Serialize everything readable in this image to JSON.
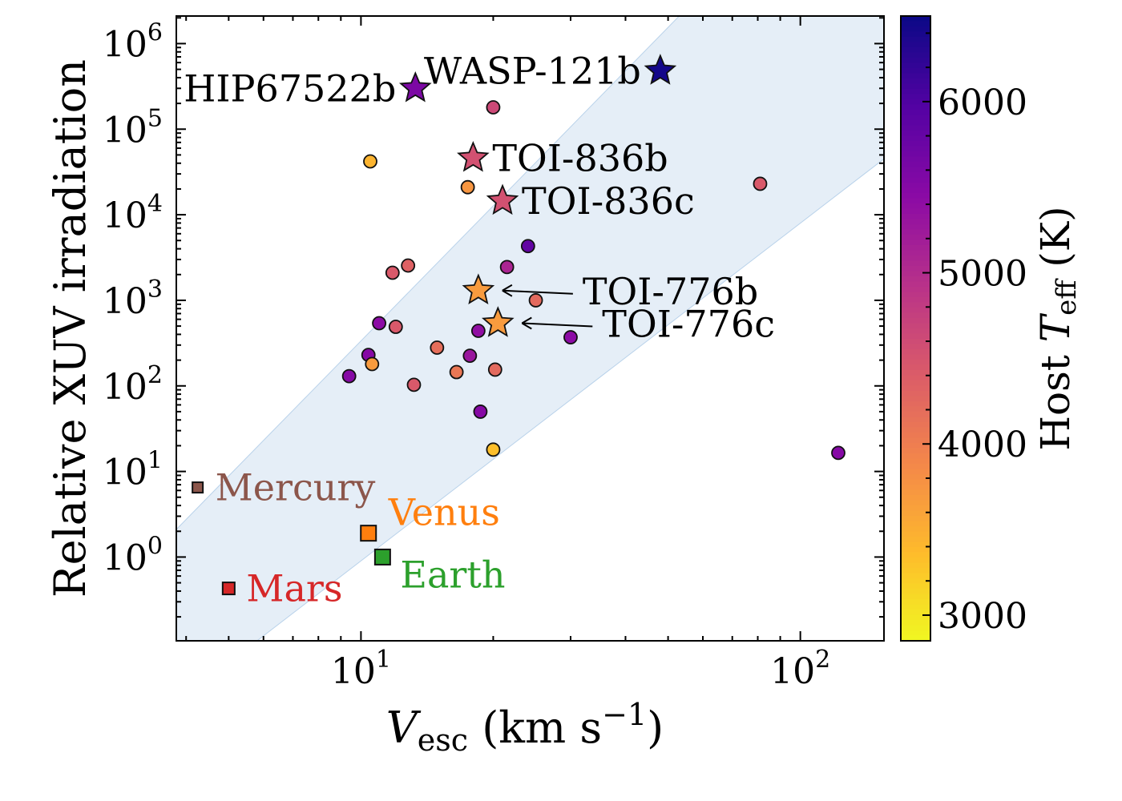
{
  "chart_data": {
    "type": "scatter",
    "xscale": "log",
    "yscale": "log",
    "xlim": [
      3.8,
      155
    ],
    "ylim": [
      0.105,
      2100000
    ],
    "xlabel": {
      "main": "V",
      "sub": "esc",
      "unit": " (km s",
      "sup": "−1",
      "close": ")"
    },
    "ylabel": "Relative XUV irradiation",
    "xticks": [
      {
        "value": 10,
        "base": "10",
        "exp": "1"
      },
      {
        "value": 100,
        "base": "10",
        "exp": "2"
      }
    ],
    "yticks": [
      {
        "value": 1,
        "base": "10",
        "exp": "0"
      },
      {
        "value": 10,
        "base": "10",
        "exp": "1"
      },
      {
        "value": 100,
        "base": "10",
        "exp": "2"
      },
      {
        "value": 1000,
        "base": "10",
        "exp": "3"
      },
      {
        "value": 10000,
        "base": "10",
        "exp": "4"
      },
      {
        "value": 100000,
        "base": "10",
        "exp": "5"
      },
      {
        "value": 1000000,
        "base": "10",
        "exp": "6"
      }
    ],
    "band": {
      "lower": [
        [
          5.8,
          0.105
        ],
        [
          155,
          45000
        ]
      ],
      "upper": [
        [
          3.8,
          2.1
        ],
        [
          53,
          2100000
        ]
      ],
      "color": "#cfe0f1"
    },
    "colorbar": {
      "label_main": "Host ",
      "label_var": "T",
      "label_sub": "eff",
      "label_unit": " (K)",
      "min": 2850,
      "max": 6500,
      "ticks": [
        3000,
        4000,
        5000,
        6000
      ],
      "colormap": "plasma_r"
    },
    "planets": [
      {
        "x": 10.5,
        "y": 42000,
        "teff": 3450
      },
      {
        "x": 20.0,
        "y": 180000,
        "teff": 4650
      },
      {
        "x": 17.5,
        "y": 21000,
        "teff": 3750
      },
      {
        "x": 81,
        "y": 23000,
        "teff": 4450
      },
      {
        "x": 24.0,
        "y": 4300,
        "teff": 5850
      },
      {
        "x": 21.5,
        "y": 2450,
        "teff": 5100
      },
      {
        "x": 11.8,
        "y": 2100,
        "teff": 4450
      },
      {
        "x": 12.8,
        "y": 2550,
        "teff": 4350
      },
      {
        "x": 25.0,
        "y": 1000,
        "teff": 4250
      },
      {
        "x": 11.0,
        "y": 540,
        "teff": 5450
      },
      {
        "x": 12.0,
        "y": 490,
        "teff": 4450
      },
      {
        "x": 18.5,
        "y": 440,
        "teff": 5400
      },
      {
        "x": 30,
        "y": 370,
        "teff": 5450
      },
      {
        "x": 14.9,
        "y": 280,
        "teff": 4200
      },
      {
        "x": 10.4,
        "y": 230,
        "teff": 5500
      },
      {
        "x": 10.6,
        "y": 180,
        "teff": 3700
      },
      {
        "x": 9.4,
        "y": 130,
        "teff": 5500
      },
      {
        "x": 17.7,
        "y": 225,
        "teff": 5300
      },
      {
        "x": 16.5,
        "y": 145,
        "teff": 4100
      },
      {
        "x": 20.2,
        "y": 155,
        "teff": 4250
      },
      {
        "x": 13.2,
        "y": 103,
        "teff": 4450
      },
      {
        "x": 18.7,
        "y": 50,
        "teff": 5500
      },
      {
        "x": 20.0,
        "y": 18,
        "teff": 3350
      },
      {
        "x": 122,
        "y": 16.5,
        "teff": 5500
      }
    ],
    "highlighted": [
      {
        "name": "HIP67522b",
        "x": 13.3,
        "y": 300000,
        "teff": 5600,
        "label_side": "left"
      },
      {
        "name": "WASP-121b",
        "x": 48,
        "y": 480000,
        "teff": 6450,
        "label_side": "left"
      },
      {
        "name": "TOI-836b",
        "x": 18.0,
        "y": 46000,
        "teff": 4550,
        "label_side": "right"
      },
      {
        "name": "TOI-836c",
        "x": 21.0,
        "y": 14500,
        "teff": 4550,
        "label_side": "right"
      },
      {
        "name": "TOI-776b",
        "x": 18.5,
        "y": 1300,
        "teff": 3700,
        "label_side": "arrow"
      },
      {
        "name": "TOI-776c",
        "x": 20.5,
        "y": 540,
        "teff": 3700,
        "label_side": "arrow"
      }
    ],
    "solar_system": [
      {
        "name": "Mercury",
        "x": 4.25,
        "y": 6.5,
        "color": "#8c564b"
      },
      {
        "name": "Venus",
        "x": 10.4,
        "y": 1.9,
        "color": "#ff7f0e"
      },
      {
        "name": "Earth",
        "x": 11.2,
        "y": 1.0,
        "color": "#2ca02c"
      },
      {
        "name": "Mars",
        "x": 5.0,
        "y": 0.43,
        "color": "#d62728"
      }
    ]
  }
}
